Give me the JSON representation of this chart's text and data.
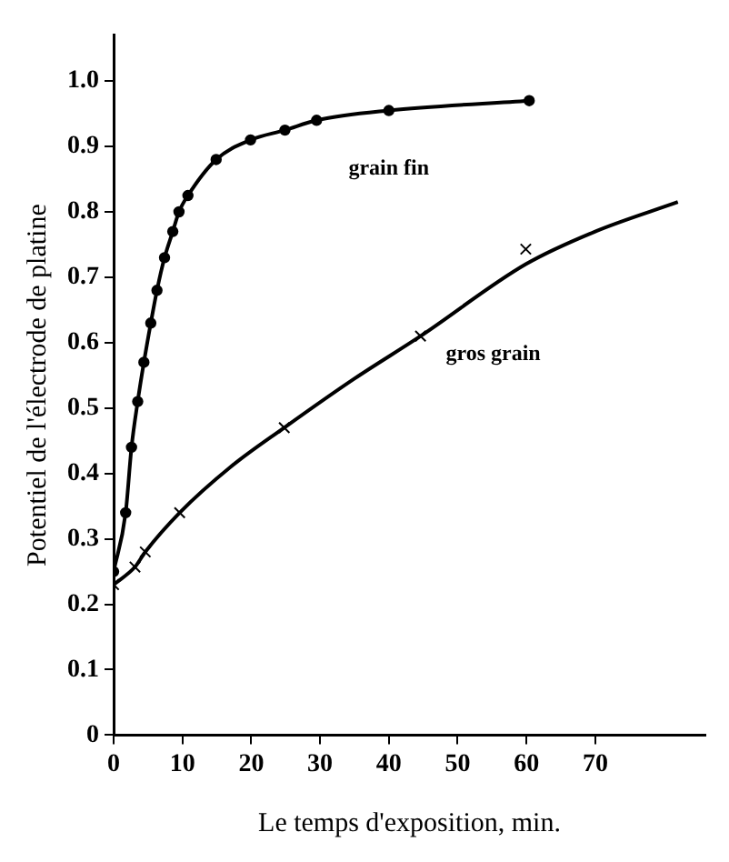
{
  "chart_data": {
    "type": "line",
    "xlabel": "Le temps d'exposition, min.",
    "ylabel": "Potentiel de l'électrode de platine",
    "xlim": [
      0,
      86
    ],
    "xticks": [
      0,
      10,
      20,
      30,
      40,
      50,
      60,
      70
    ],
    "ylim": [
      0,
      1.07
    ],
    "yticks": [
      0,
      0.1,
      0.2,
      0.3,
      0.4,
      0.5,
      0.6,
      0.7,
      0.8,
      0.9,
      {
        "value": 1,
        "label": "1.0"
      }
    ],
    "grid": false,
    "legend": false,
    "series": [
      {
        "name": "grain fin",
        "marker": "circle",
        "color": "#000000",
        "x": [
          0,
          1.75,
          2.6,
          3.5,
          4.4,
          5.4,
          6.3,
          7.4,
          8.6,
          9.5,
          10.8,
          14.9,
          19.9,
          24.9,
          29.5,
          40,
          60.4
        ],
        "values": [
          0.25,
          0.34,
          0.44,
          0.51,
          0.57,
          0.63,
          0.68,
          0.73,
          0.77,
          0.8,
          0.825,
          0.88,
          0.91,
          0.925,
          0.94,
          0.955,
          0.97
        ]
      },
      {
        "type": "scatter",
        "marker": "cross",
        "color": "#000000",
        "x": [
          0,
          3.1,
          4.6,
          9.6,
          24.8,
          44.6,
          59.9
        ],
        "values": [
          0.23,
          0.257,
          0.28,
          0.34,
          0.47,
          0.61,
          0.743
        ]
      },
      {
        "name": "gros grain",
        "marker": "none",
        "color": "#000000",
        "x": [
          0,
          3.1,
          4.6,
          9.6,
          17,
          24.8,
          35,
          44.6,
          59.9,
          70,
          82
        ],
        "values": [
          0.23,
          0.257,
          0.28,
          0.34,
          0.41,
          0.47,
          0.545,
          0.61,
          0.72,
          0.77,
          0.815
        ]
      }
    ]
  }
}
